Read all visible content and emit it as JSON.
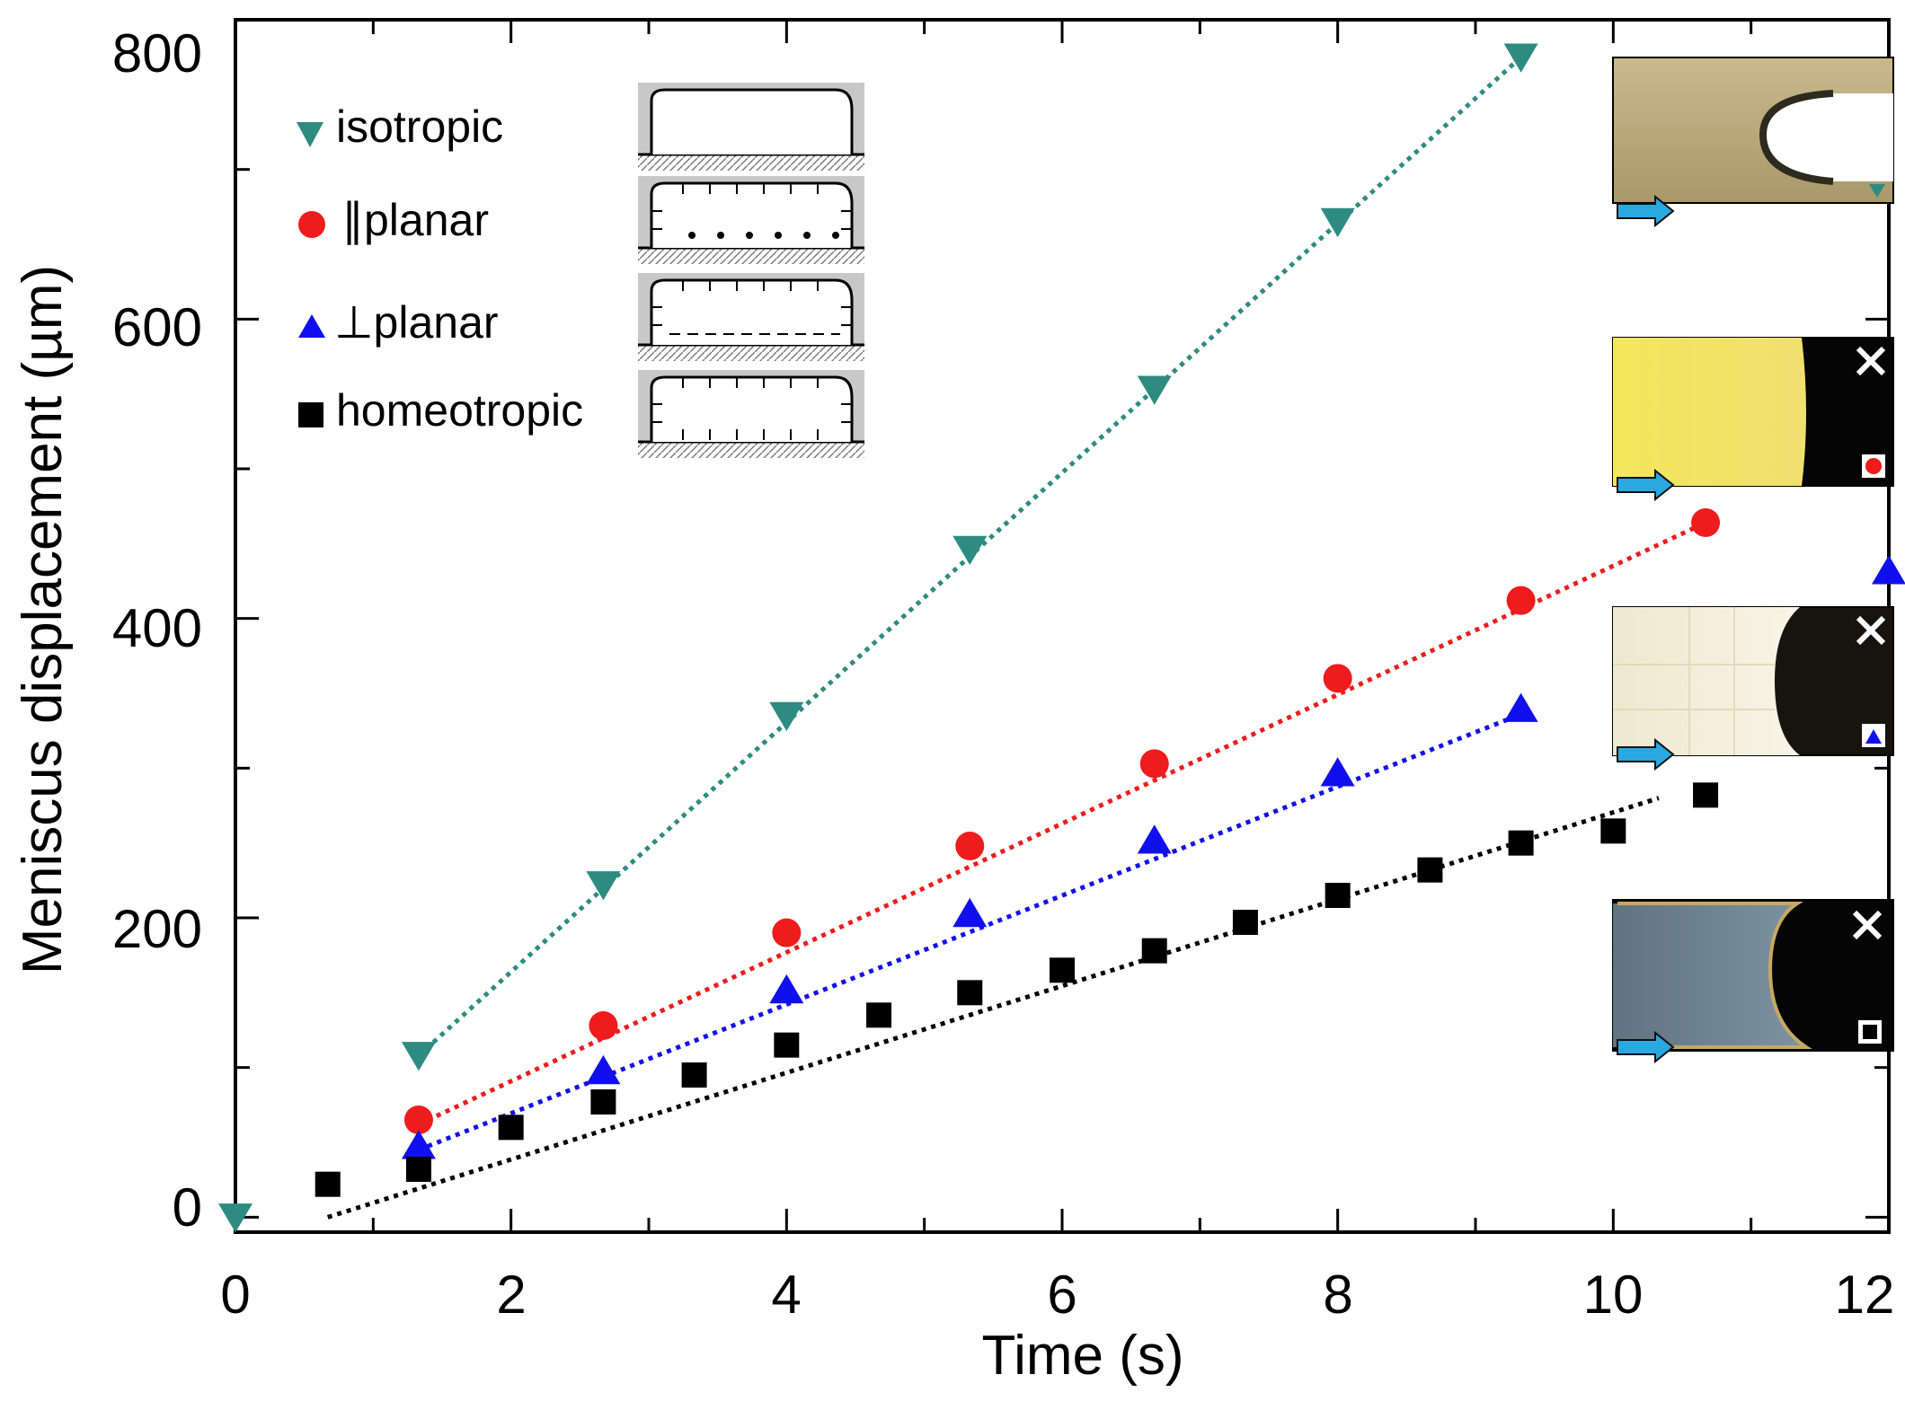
{
  "chart_data": {
    "type": "scatter",
    "title": "",
    "xlabel": "Time (s)",
    "ylabel": "Meniscus displacement (µm)",
    "xlim": [
      0,
      12
    ],
    "ylim": [
      -10,
      800
    ],
    "xticks": [
      "0",
      "2",
      "4",
      "6",
      "8",
      "10",
      "12"
    ],
    "yticks": [
      "0",
      "200",
      "400",
      "600",
      "800"
    ],
    "series": [
      {
        "name": "isotropic",
        "marker": "triangle-down",
        "color": "#2e8b80",
        "x": [
          0,
          1.33,
          2.67,
          4.0,
          5.33,
          6.67,
          8.0,
          9.33
        ],
        "y": [
          0,
          108,
          222,
          335,
          446,
          553,
          665,
          775
        ],
        "fit": {
          "x0": 1.33,
          "x1": 9.33,
          "y0": 108,
          "y1": 775
        }
      },
      {
        "name": "∥planar",
        "marker": "circle",
        "color": "#ee1c1c",
        "x": [
          1.33,
          2.67,
          4.0,
          5.33,
          6.67,
          8.0,
          9.33,
          10.67
        ],
        "y": [
          65,
          128,
          190,
          248,
          303,
          360,
          412,
          464
        ],
        "fit": {
          "x0": 1.33,
          "x1": 10.67,
          "y0": 62,
          "y1": 464
        }
      },
      {
        "name": "⊥planar",
        "marker": "triangle-up",
        "color": "#1010ee",
        "x": [
          1.33,
          2.67,
          4.0,
          5.33,
          6.67,
          8.0,
          9.33,
          12.0
        ],
        "y": [
          48,
          98,
          152,
          203,
          252,
          297,
          340,
          432
        ],
        "fit": {
          "x0": 1.33,
          "x1": 9.33,
          "y0": 45,
          "y1": 336
        }
      },
      {
        "name": "homeotropic",
        "marker": "square",
        "color": "#000000",
        "x": [
          0.67,
          1.33,
          2.0,
          2.67,
          3.33,
          4.0,
          4.67,
          5.33,
          6.0,
          6.67,
          7.33,
          8.0,
          8.67,
          9.33,
          10.0,
          10.67
        ],
        "y": [
          22,
          32,
          60,
          77,
          95,
          115,
          135,
          150,
          165,
          178,
          197,
          215,
          232,
          250,
          258,
          282
        ],
        "fit": {
          "x0": 0.67,
          "x1": 10.33,
          "y0": 0,
          "y1": 280
        }
      }
    ],
    "legend": {
      "placement": "top-left",
      "entries": [
        "isotropic",
        "∥planar",
        "⊥planar",
        "homeotropic"
      ]
    },
    "insets": [
      "isotropic",
      "∥planar",
      "⊥planar",
      "homeotropic"
    ]
  }
}
